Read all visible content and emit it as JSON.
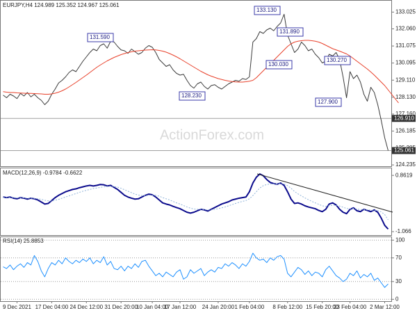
{
  "chart_data": [
    {
      "type": "line",
      "title": "EURJPY,H4 124.989 125.352 124.967 125.061",
      "watermark": "ActionForex.com",
      "ylim": [
        124.2,
        133.6
      ],
      "yticks": [
        133.025,
        {
          "value": 132.06,
          "label": "132.060"
        },
        131.075,
        130.095,
        {
          "value": 129.11,
          "label": "129.110"
        },
        {
          "value": 128.13,
          "label": "128.130"
        },
        {
          "value": 127.16,
          "label": "127.160"
        },
        126.185,
        125.205,
        124.235
      ],
      "hlines": [
        {
          "value": 126.91,
          "label": "126.910"
        },
        125.061
      ],
      "annotations": [
        {
          "value": 133.13,
          "label": "133.130"
        },
        {
          "value": 131.59,
          "label": "131.590"
        },
        {
          "value": 128.23,
          "label": "128.230"
        },
        {
          "value": 131.89,
          "label": "131.890"
        },
        {
          "value": 130.03,
          "label": "130.030"
        },
        {
          "value": 130.27,
          "label": "130.270"
        },
        {
          "value": 127.9,
          "label": "127.900"
        }
      ],
      "series": [
        {
          "color": "#3a3a3a",
          "values": [
            128.25,
            128.1,
            128.3,
            128.2,
            128.05,
            128.35,
            128.2,
            128.4,
            128.15,
            128.3,
            128.1,
            127.95,
            127.7,
            127.9,
            128.3,
            128.6,
            128.95,
            129.1,
            129.3,
            129.55,
            129.7,
            129.6,
            129.9,
            130.2,
            130.45,
            130.7,
            130.9,
            130.8,
            131.1,
            131.2,
            130.95,
            131.35,
            131.3,
            131.05,
            130.85,
            130.8,
            130.65,
            130.9,
            130.75,
            130.6,
            130.7,
            130.95,
            131.1,
            131.0,
            130.7,
            130.3,
            130.1,
            129.9,
            130.0,
            129.7,
            129.5,
            129.4,
            129.45,
            129.1,
            128.8,
            128.65,
            128.9,
            129.0,
            128.75,
            128.6,
            128.8,
            128.85,
            128.7,
            128.6,
            128.75,
            128.9,
            129.0,
            129.1,
            129.05,
            129.2,
            129.15,
            129.3,
            131.3,
            131.5,
            131.9,
            131.8,
            132.0,
            132.1,
            131.95,
            132.2,
            132.4,
            132.9,
            131.7,
            131.2,
            130.7,
            130.9,
            131.3,
            131.1,
            130.8,
            130.9,
            130.6,
            130.4,
            130.1,
            130.2,
            130.6,
            130.5,
            130.7,
            130.3,
            129.3,
            128.1,
            129.6,
            129.2,
            129.4,
            129.0,
            128.3,
            127.9,
            128.7,
            128.4,
            127.7,
            126.8,
            125.8,
            125.06
          ]
        },
        {
          "color": "#e8402a",
          "values": [
            128.45,
            128.42,
            128.4,
            128.4,
            128.38,
            128.37,
            128.36,
            128.35,
            128.35,
            128.34,
            128.33,
            128.32,
            128.3,
            128.3,
            128.32,
            128.36,
            128.42,
            128.5,
            128.6,
            128.72,
            128.85,
            128.98,
            129.12,
            129.26,
            129.4,
            129.55,
            129.7,
            129.85,
            129.98,
            130.1,
            130.22,
            130.32,
            130.42,
            130.5,
            130.58,
            130.64,
            130.7,
            130.74,
            130.78,
            130.8,
            130.82,
            130.84,
            130.85,
            130.86,
            130.85,
            130.82,
            130.78,
            130.72,
            130.64,
            130.55,
            130.45,
            130.34,
            130.22,
            130.1,
            129.98,
            129.86,
            129.74,
            129.62,
            129.52,
            129.42,
            129.34,
            129.27,
            129.2,
            129.15,
            129.1,
            129.06,
            129.03,
            129.01,
            129.0,
            129.0,
            129.02,
            129.05,
            129.1,
            129.25,
            129.45,
            129.65,
            129.85,
            130.05,
            130.25,
            130.45,
            130.65,
            130.85,
            131.05,
            131.2,
            131.3,
            131.35,
            131.38,
            131.4,
            131.4,
            131.38,
            131.35,
            131.3,
            131.22,
            131.12,
            131.02,
            130.92,
            130.85,
            130.78,
            130.7,
            130.62,
            130.5,
            130.35,
            130.2,
            130.05,
            129.9,
            129.75,
            129.58,
            129.4,
            129.2,
            129.0,
            128.8,
            128.55,
            128.3,
            128.05,
            127.8
          ]
        }
      ]
    },
    {
      "type": "line",
      "title": "MACD(12,26,9) -0.9784 -0.6622",
      "ylim": [
        -1.16,
        1.08
      ],
      "yticks": [
        0.8619,
        -1.066
      ],
      "series": [
        {
          "color": "#0a0a8c",
          "values": [
            0.12,
            0.1,
            0.12,
            0.08,
            0.06,
            0.1,
            0.08,
            0.05,
            0.08,
            0.06,
            0.02,
            -0.05,
            -0.12,
            -0.1,
            0.0,
            0.1,
            0.18,
            0.24,
            0.3,
            0.34,
            0.38,
            0.4,
            0.44,
            0.47,
            0.5,
            0.52,
            0.5,
            0.52,
            0.55,
            0.54,
            0.5,
            0.52,
            0.45,
            0.38,
            0.28,
            0.18,
            0.12,
            0.08,
            0.05,
            0.06,
            0.12,
            0.18,
            0.22,
            0.2,
            0.12,
            0.02,
            -0.08,
            -0.12,
            -0.15,
            -0.2,
            -0.24,
            -0.28,
            -0.34,
            -0.4,
            -0.43,
            -0.4,
            -0.35,
            -0.3,
            -0.32,
            -0.36,
            -0.3,
            -0.24,
            -0.18,
            -0.12,
            -0.08,
            -0.04,
            0.02,
            0.05,
            0.08,
            0.1,
            0.12,
            0.3,
            0.6,
            0.8,
            0.91,
            0.85,
            0.72,
            0.62,
            0.58,
            0.56,
            0.6,
            0.52,
            0.3,
            0.05,
            -0.1,
            -0.08,
            -0.12,
            -0.18,
            -0.22,
            -0.25,
            -0.28,
            -0.34,
            -0.38,
            -0.3,
            -0.12,
            -0.08,
            -0.15,
            -0.3,
            -0.4,
            -0.45,
            -0.3,
            -0.25,
            -0.35,
            -0.38,
            -0.3,
            -0.34,
            -0.38,
            -0.32,
            -0.4,
            -0.6,
            -0.85,
            -0.9784
          ]
        },
        {
          "color": "#8fb3d9",
          "dashed": true,
          "values": [
            0.1,
            0.1,
            0.1,
            0.1,
            0.09,
            0.09,
            0.09,
            0.08,
            0.08,
            0.07,
            0.06,
            0.04,
            0.01,
            -0.01,
            -0.01,
            0.01,
            0.04,
            0.08,
            0.12,
            0.16,
            0.2,
            0.24,
            0.28,
            0.32,
            0.35,
            0.38,
            0.41,
            0.43,
            0.45,
            0.47,
            0.48,
            0.49,
            0.48,
            0.46,
            0.42,
            0.37,
            0.32,
            0.27,
            0.22,
            0.19,
            0.17,
            0.17,
            0.18,
            0.19,
            0.18,
            0.15,
            0.1,
            0.06,
            0.02,
            -0.03,
            -0.08,
            -0.12,
            -0.17,
            -0.22,
            -0.26,
            -0.29,
            -0.3,
            -0.3,
            -0.31,
            -0.32,
            -0.32,
            -0.3,
            -0.28,
            -0.25,
            -0.22,
            -0.18,
            -0.14,
            -0.1,
            -0.06,
            -0.03,
            0.0,
            0.06,
            0.17,
            0.3,
            0.43,
            0.51,
            0.55,
            0.57,
            0.57,
            0.57,
            0.58,
            0.57,
            0.51,
            0.42,
            0.31,
            0.23,
            0.16,
            0.09,
            0.03,
            -0.03,
            -0.08,
            -0.13,
            -0.18,
            -0.2,
            -0.18,
            -0.16,
            -0.16,
            -0.19,
            -0.23,
            -0.27,
            -0.28,
            -0.27,
            -0.29,
            -0.31,
            -0.31,
            -0.32,
            -0.33,
            -0.33,
            -0.34,
            -0.39,
            -0.48,
            -0.6622
          ]
        }
      ]
    },
    {
      "type": "line",
      "title": "RSI(14) 25.8853",
      "ylim": [
        -2,
        105
      ],
      "yticks": [
        100,
        70,
        30,
        0
      ],
      "grid": true,
      "categories": [
        null,
        null,
        null,
        null,
        "9 Dec 2021",
        null,
        null,
        null,
        null,
        null,
        null,
        null,
        null,
        null,
        "17 Dec 04:00",
        null,
        null,
        null,
        null,
        null,
        null,
        null,
        null,
        null,
        "24 Dec 12:00",
        null,
        null,
        null,
        null,
        null,
        null,
        null,
        null,
        null,
        "31 Dec 20:00",
        null,
        null,
        null,
        null,
        null,
        null,
        null,
        null,
        "10 Jan 04:00",
        null,
        null,
        null,
        null,
        null,
        null,
        null,
        "17 Jan 12:00",
        null,
        null,
        null,
        null,
        null,
        null,
        null,
        null,
        null,
        null,
        "24 Jan 20:00",
        null,
        null,
        null,
        null,
        null,
        null,
        null,
        null,
        "1 Feb 04:00",
        null,
        null,
        null,
        null,
        null,
        null,
        null,
        null,
        null,
        null,
        "8 Feb 12:00",
        null,
        null,
        null,
        null,
        null,
        null,
        null,
        null,
        null,
        "15 Feb 20:00",
        null,
        null,
        null,
        null,
        null,
        null,
        null,
        "23 Feb 04:00",
        null,
        null,
        null,
        null,
        null,
        null,
        null,
        null,
        null,
        "2 Mar 12:00",
        null
      ],
      "series": [
        {
          "color": "#1e90ff",
          "values": [
            55,
            52,
            58,
            50,
            56,
            60,
            54,
            62,
            58,
            74,
            64,
            48,
            38,
            52,
            62,
            58,
            66,
            60,
            70,
            64,
            60,
            66,
            62,
            68,
            64,
            70,
            60,
            66,
            62,
            72,
            58,
            64,
            52,
            50,
            56,
            48,
            56,
            52,
            60,
            54,
            64,
            66,
            56,
            48,
            40,
            44,
            38,
            46,
            42,
            38,
            46,
            50,
            34,
            38,
            50,
            44,
            48,
            52,
            40,
            46,
            50,
            46,
            54,
            52,
            60,
            56,
            62,
            58,
            52,
            60,
            56,
            64,
            78,
            70,
            66,
            68,
            62,
            70,
            66,
            72,
            74,
            68,
            44,
            38,
            46,
            54,
            50,
            42,
            48,
            40,
            46,
            44,
            38,
            50,
            56,
            48,
            40,
            36,
            30,
            34,
            44,
            40,
            48,
            36,
            42,
            38,
            44,
            32,
            36,
            28,
            20,
            25.8853
          ]
        }
      ]
    }
  ]
}
